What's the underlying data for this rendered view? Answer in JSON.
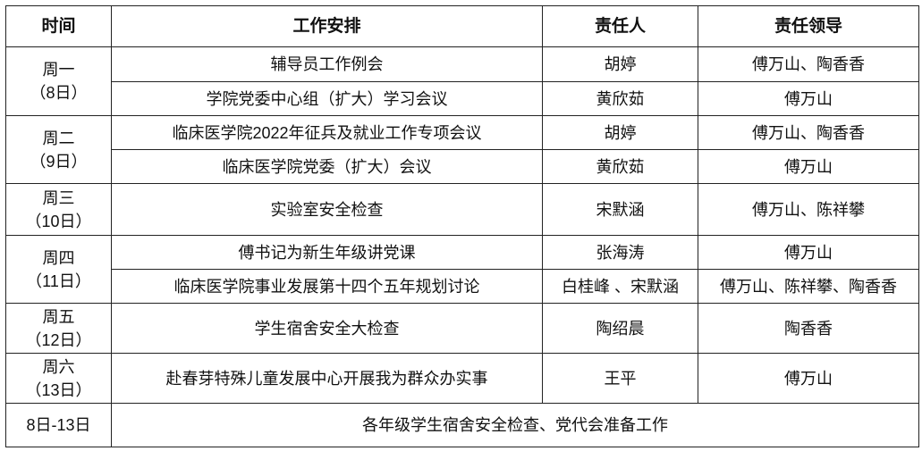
{
  "headers": {
    "time": "时间",
    "task": "工作安排",
    "person": "责任人",
    "leader": "责任领导"
  },
  "days": [
    {
      "day": "周一",
      "date": "（8日）",
      "items": [
        {
          "task": "辅导员工作例会",
          "person": "胡婷",
          "leader": "傅万山、陶香香"
        },
        {
          "task": "学院党委中心组（扩大）学习会议",
          "person": "黄欣茹",
          "leader": "傅万山"
        }
      ]
    },
    {
      "day": "周二",
      "date": "（9日）",
      "items": [
        {
          "task": "临床医学院2022年征兵及就业工作专项会议",
          "person": "胡婷",
          "leader": "傅万山、陶香香"
        },
        {
          "task": "临床医学院党委（扩大）会议",
          "person": "黄欣茹",
          "leader": "傅万山"
        }
      ]
    },
    {
      "day": "周三",
      "date": "（10日）",
      "items": [
        {
          "task": "实验室安全检查",
          "person": "宋默涵",
          "leader": "傅万山、陈祥攀"
        }
      ]
    },
    {
      "day": "周四",
      "date": "（11日）",
      "items": [
        {
          "task": "傅书记为新生年级讲党课",
          "person": "张海涛",
          "leader": "傅万山"
        },
        {
          "task": "临床医学院事业发展第十四个五年规划讨论",
          "person": "白桂峰 、宋默涵",
          "leader": "傅万山、陈祥攀、陶香香"
        }
      ]
    },
    {
      "day": "周五",
      "date": "（12日）",
      "items": [
        {
          "task": "学生宿舍安全大检查",
          "person": "陶绍晨",
          "leader": "陶香香"
        }
      ]
    },
    {
      "day": "周六",
      "date": "（13日）",
      "items": [
        {
          "task": "赴春芽特殊儿童发展中心开展我为群众办实事",
          "person": "王平",
          "leader": "傅万山"
        }
      ]
    }
  ],
  "summary": {
    "range": "8日-13日",
    "task": "各年级学生宿舍安全检查、党代会准备工作"
  }
}
